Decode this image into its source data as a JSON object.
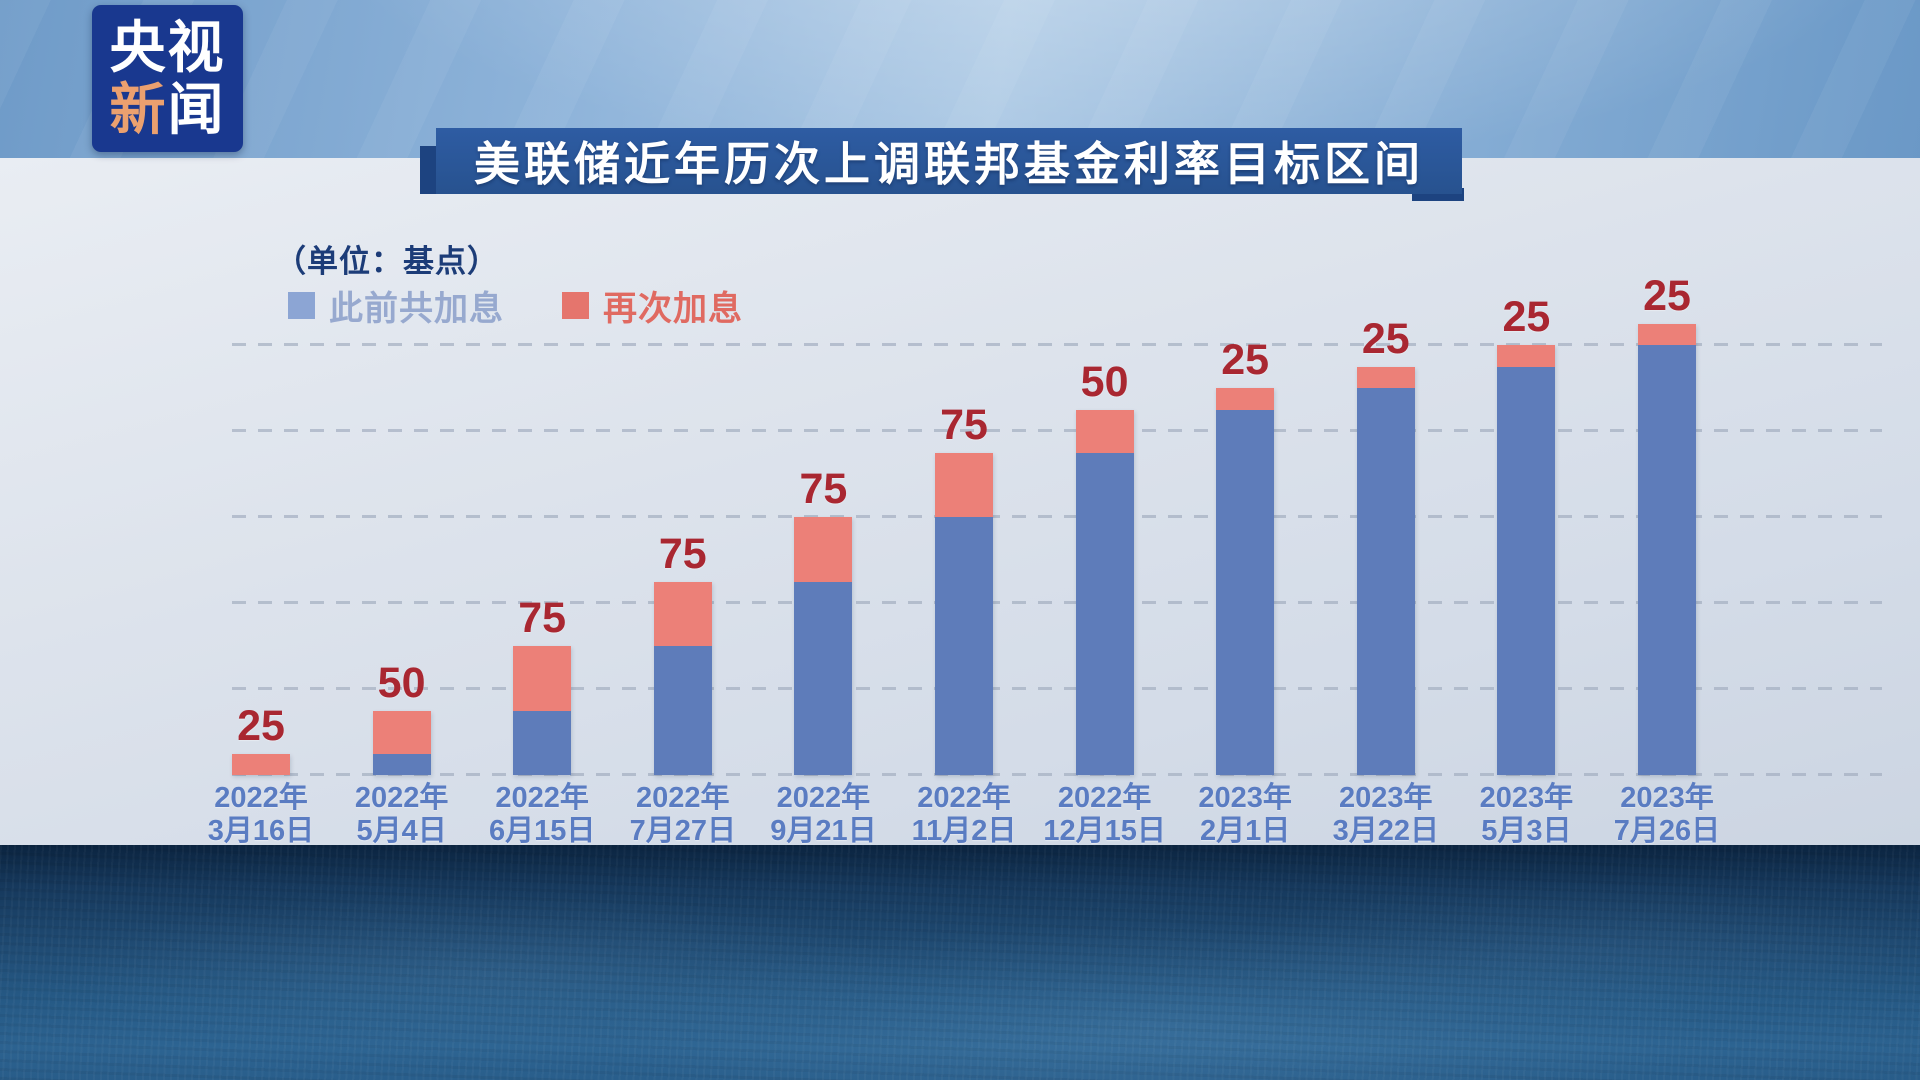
{
  "logo": {
    "line1": "央视",
    "line2_accent": "新",
    "line2_rest": "闻"
  },
  "title": "美联储近年历次上调联邦基金利率目标区间",
  "unit_label": "（单位：基点）",
  "legend": [
    {
      "label": "此前共加息",
      "swatch_color": "#8ca5d4",
      "text_color": "#97a9cf"
    },
    {
      "label": "再次加息",
      "swatch_color": "#e5756d",
      "text_color": "#e06a61"
    }
  ],
  "chart_data": {
    "type": "bar",
    "stacked": true,
    "title": "美联储近年历次上调联邦基金利率目标区间",
    "unit": "基点",
    "legend_position": "top-left",
    "grid": "dashed-horizontal",
    "grid_values": [
      0,
      100,
      200,
      300,
      400,
      500
    ],
    "ylim": [
      0,
      525
    ],
    "categories": [
      {
        "line1": "2022年",
        "line2": "3月16日"
      },
      {
        "line1": "2022年",
        "line2": "5月4日"
      },
      {
        "line1": "2022年",
        "line2": "6月15日"
      },
      {
        "line1": "2022年",
        "line2": "7月27日"
      },
      {
        "line1": "2022年",
        "line2": "9月21日"
      },
      {
        "line1": "2022年",
        "line2": "11月2日"
      },
      {
        "line1": "2022年",
        "line2": "12月15日"
      },
      {
        "line1": "2023年",
        "line2": "2月1日"
      },
      {
        "line1": "2023年",
        "line2": "3月22日"
      },
      {
        "line1": "2023年",
        "line2": "5月3日"
      },
      {
        "line1": "2023年",
        "line2": "7月26日"
      }
    ],
    "series": [
      {
        "name": "此前共加息",
        "color": "#5e7cba",
        "values": [
          0,
          25,
          75,
          150,
          225,
          300,
          375,
          425,
          450,
          475,
          500
        ]
      },
      {
        "name": "再次加息",
        "color": "#ec8078",
        "values": [
          25,
          50,
          75,
          75,
          75,
          75,
          50,
          25,
          25,
          25,
          25
        ]
      }
    ],
    "value_labels": [
      25,
      50,
      75,
      75,
      75,
      75,
      50,
      25,
      25,
      25,
      25
    ]
  },
  "colors": {
    "logo_bg": "#19388f",
    "logo_accent": "#eba06f",
    "banner_bg": "#2e5ca3",
    "banner_fold": "#1d4380",
    "unit_text": "#1c3c78",
    "legend_prior_swatch": "#8ca5d4",
    "legend_prior_text": "#97a9cf",
    "legend_hike_swatch": "#e5756d",
    "legend_hike_text": "#e06a61",
    "bar_prior": "#5e7cba",
    "bar_hike": "#ec8078",
    "value_label": "#a92731",
    "date_label": "#5a7cc2",
    "grid": "#a3aec0"
  }
}
